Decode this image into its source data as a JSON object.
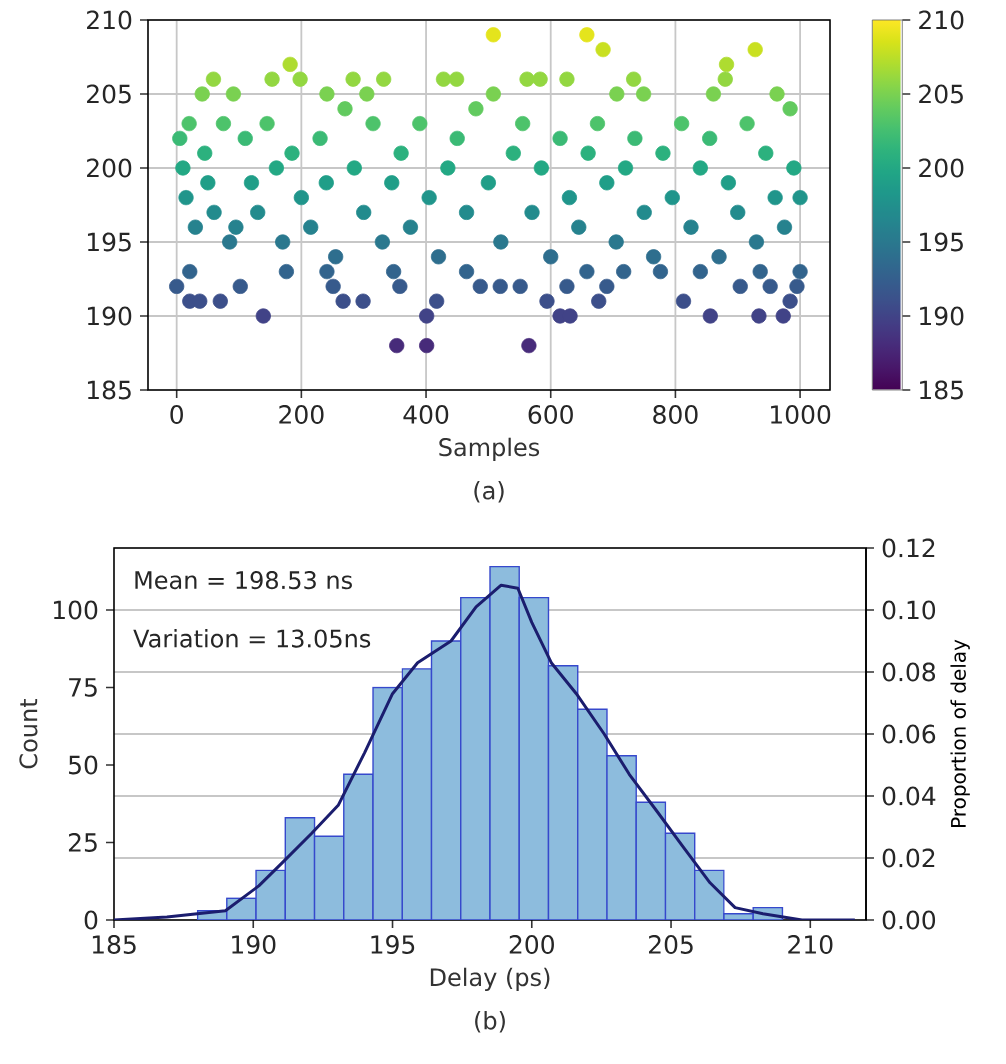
{
  "chart_data": [
    {
      "type": "scatter",
      "xlabel": "Samples",
      "annotations": [
        "(a)"
      ],
      "x": [
        508,
        658,
        684,
        928,
        182,
        882,
        59,
        153,
        198,
        283,
        332,
        428,
        449,
        562,
        583,
        626,
        880,
        733,
        963,
        984,
        41,
        91,
        241,
        305,
        508,
        706,
        749,
        861,
        353,
        401,
        565,
        401,
        139,
        856,
        615,
        631,
        934,
        973,
        813,
        21,
        37,
        70,
        267,
        299,
        417,
        594,
        677,
        984,
        0,
        102,
        251,
        358,
        487,
        519,
        551,
        626,
        690,
        904,
        952,
        995,
        21,
        176,
        241,
        348,
        465,
        658,
        717,
        776,
        840,
        936,
        1000,
        5,
        10,
        15,
        20,
        30,
        45,
        50,
        60,
        75,
        85,
        95,
        110,
        120,
        130,
        145,
        160,
        170,
        185,
        200,
        215,
        230,
        240,
        255,
        270,
        285,
        300,
        315,
        330,
        345,
        360,
        375,
        390,
        405,
        420,
        435,
        450,
        465,
        480,
        500,
        520,
        540,
        555,
        570,
        585,
        600,
        615,
        630,
        645,
        660,
        675,
        690,
        705,
        720,
        735,
        750,
        765,
        780,
        795,
        810,
        825,
        840,
        855,
        870,
        885,
        900,
        915,
        930,
        945,
        960,
        975,
        990,
        1000
      ],
      "values": [
        209,
        209,
        208,
        208,
        207,
        207,
        206,
        206,
        206,
        206,
        206,
        206,
        206,
        206,
        206,
        206,
        206,
        206,
        205,
        204,
        205,
        205,
        205,
        205,
        205,
        205,
        205,
        205,
        188,
        188,
        188,
        190,
        190,
        190,
        190,
        190,
        190,
        190,
        191,
        191,
        191,
        191,
        191,
        191,
        191,
        191,
        191,
        191,
        192,
        192,
        192,
        192,
        192,
        192,
        192,
        192,
        192,
        192,
        192,
        192,
        193,
        193,
        193,
        193,
        193,
        193,
        193,
        193,
        193,
        193,
        193,
        202,
        200,
        198,
        203,
        196,
        201,
        199,
        197,
        203,
        195,
        196,
        202,
        199,
        197,
        203,
        200,
        195,
        201,
        198,
        196,
        202,
        199,
        194,
        204,
        200,
        197,
        203,
        195,
        199,
        201,
        196,
        203,
        198,
        194,
        200,
        202,
        197,
        204,
        199,
        195,
        201,
        203,
        197,
        200,
        194,
        202,
        198,
        196,
        201,
        203,
        199,
        195,
        200,
        202,
        197,
        194,
        201,
        198,
        203,
        196,
        200,
        202,
        194,
        199,
        197,
        203,
        195,
        201,
        198,
        196,
        200,
        198
      ],
      "cvalues": [
        209,
        209,
        208,
        208,
        207,
        207,
        206,
        206,
        206,
        206,
        206,
        206,
        206,
        206,
        206,
        206,
        206,
        206,
        205,
        204,
        205,
        205,
        205,
        205,
        205,
        205,
        205,
        205,
        188,
        188,
        188,
        190,
        190,
        190,
        190,
        190,
        190,
        190,
        191,
        191,
        191,
        191,
        191,
        191,
        191,
        191,
        191,
        191,
        192,
        192,
        192,
        192,
        192,
        192,
        192,
        192,
        192,
        192,
        192,
        192,
        193,
        193,
        193,
        193,
        193,
        193,
        193,
        193,
        193,
        193,
        193,
        202,
        200,
        198,
        203,
        196,
        201,
        199,
        197,
        203,
        195,
        196,
        202,
        199,
        197,
        203,
        200,
        195,
        201,
        198,
        196,
        202,
        199,
        194,
        204,
        200,
        197,
        203,
        195,
        199,
        201,
        196,
        203,
        198,
        194,
        200,
        202,
        197,
        204,
        199,
        195,
        201,
        203,
        197,
        200,
        194,
        202,
        198,
        196,
        201,
        203,
        199,
        195,
        200,
        202,
        197,
        194,
        201,
        198,
        203,
        196,
        200,
        202,
        194,
        199,
        197,
        203,
        195,
        201,
        198,
        196,
        200,
        198
      ],
      "clim": [
        185,
        210
      ],
      "cticks": [
        185,
        190,
        195,
        200,
        205,
        210
      ],
      "xlim": [
        -46,
        1048
      ],
      "ylim": [
        185,
        210
      ],
      "xticks": [
        0,
        200,
        400,
        600,
        800,
        1000
      ],
      "yticks": [
        185,
        190,
        195,
        200,
        205,
        210
      ],
      "grid": true,
      "marker": "circle"
    },
    {
      "type": "histogram",
      "xlabel": "Delay (ps)",
      "ylabel": "Count",
      "y2label": "Proportion of delay",
      "annotations": [
        "Mean = 198.53 ns",
        "Variation = 13.05ns",
        "(b)"
      ],
      "bins": [
        188,
        189.05,
        190.1,
        191.15,
        192.2,
        193.25,
        194.3,
        195.35,
        196.4,
        197.45,
        198.5,
        199.55,
        200.6,
        201.65,
        202.7,
        203.75,
        204.8,
        205.85,
        206.9,
        207.95,
        209
      ],
      "values": [
        3,
        7,
        16,
        33,
        27,
        47,
        75,
        81,
        90,
        104,
        114,
        104,
        82,
        68,
        53,
        38,
        28,
        16,
        2,
        4
      ],
      "color": "#8dbcdd",
      "series": [
        {
          "type": "line",
          "x": [
            185,
            186.9,
            189,
            190.2,
            191.1,
            192.1,
            193.05,
            194,
            195,
            195.9,
            197.1,
            198,
            198.9,
            199.5,
            200,
            200.7,
            201.6,
            202.6,
            203.5,
            204.5,
            205.4,
            206.4,
            207.3,
            208.3,
            209.7,
            211.6
          ],
          "values": [
            0,
            1,
            3,
            11,
            19,
            28,
            37,
            54,
            73,
            83,
            90,
            101,
            108,
            107,
            96,
            83,
            73,
            60,
            47,
            35,
            24,
            12,
            4,
            2,
            0,
            0
          ],
          "color": "#1b1d6e"
        }
      ],
      "xlim": [
        185,
        212
      ],
      "ylim": [
        0,
        120
      ],
      "y2lim": [
        0,
        0.12
      ],
      "xticks": [
        185,
        190,
        195,
        200,
        205,
        210
      ],
      "yticks": [
        0,
        25,
        50,
        75,
        100
      ],
      "y2ticks": [
        {
          "value": 0,
          "label": "0.00"
        },
        {
          "value": 0.02,
          "label": "0.02"
        },
        {
          "value": 0.04,
          "label": "0.04"
        },
        {
          "value": 0.06,
          "label": "0.06"
        },
        {
          "value": 0.08,
          "label": "0.08"
        },
        {
          "value": 0.1,
          "label": "0.10"
        },
        {
          "value": 0.12,
          "label": "0.12"
        }
      ],
      "grid": "y"
    }
  ]
}
